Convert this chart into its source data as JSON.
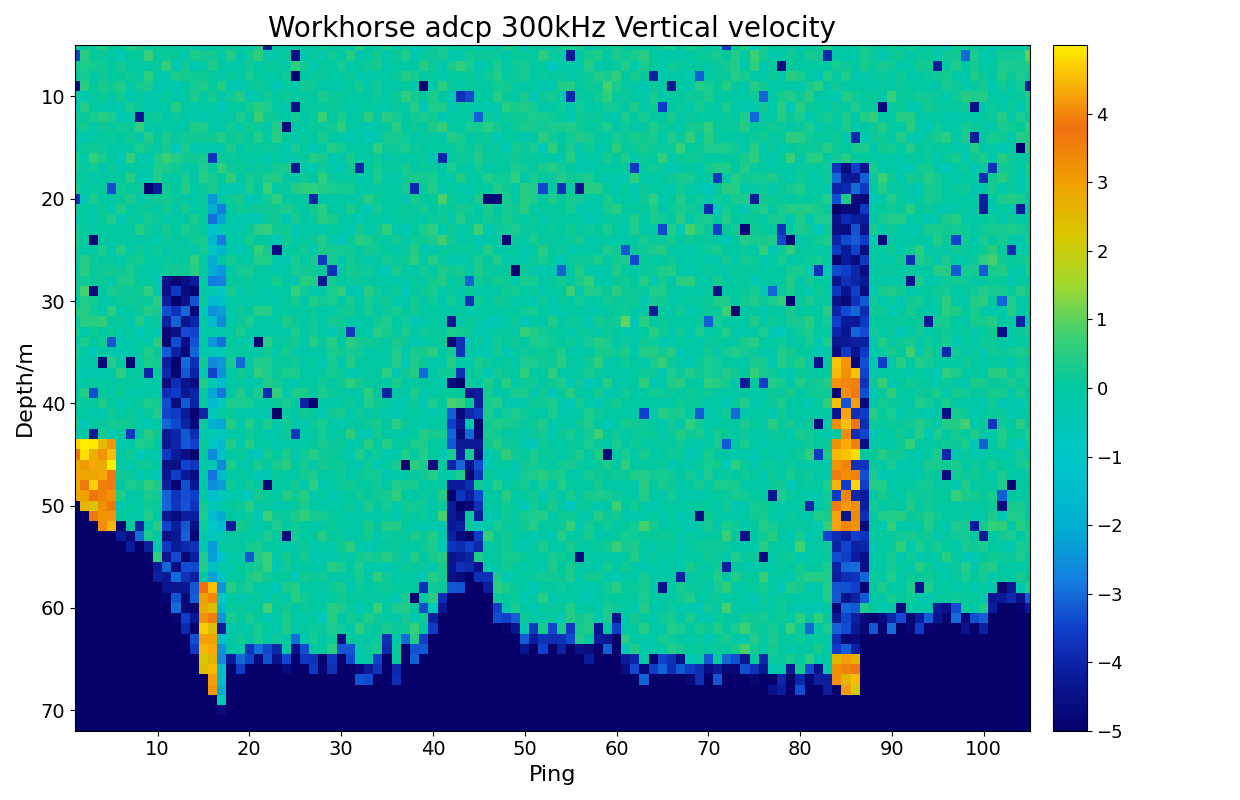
{
  "title": "Workhorse adcp 300kHz Vertical velocity",
  "xlabel": "Ping",
  "ylabel": "Depth/m",
  "ping_min": 1,
  "ping_max": 105,
  "depth_min": 5,
  "depth_max": 72,
  "vmin": -5,
  "vmax": 5,
  "colorbar_ticks": [
    -5,
    -4,
    -3,
    -2,
    -1,
    0,
    1,
    2,
    3,
    4
  ],
  "xticks": [
    10,
    20,
    30,
    40,
    50,
    60,
    70,
    80,
    90,
    100
  ],
  "yticks": [
    10,
    20,
    30,
    40,
    50,
    60,
    70
  ],
  "title_fontsize": 20,
  "label_fontsize": 16,
  "tick_fontsize": 14,
  "colorbar_fontsize": 13,
  "figsize": [
    12.4,
    8.0
  ],
  "dpi": 100
}
